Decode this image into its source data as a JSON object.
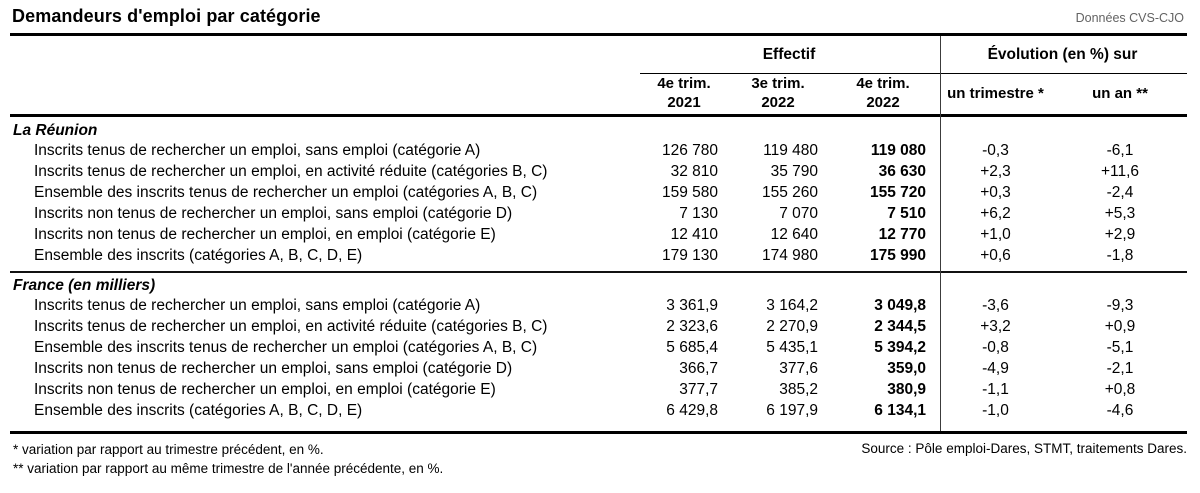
{
  "header": {
    "title": "Demandeurs d'emploi par catégorie",
    "data_note": "Données CVS-CJO"
  },
  "table": {
    "group_headers": {
      "effectif": "Effectif",
      "evolution": "Évolution (en %) sur"
    },
    "columns": {
      "c1": {
        "line1": "4e trim.",
        "line2": "2021"
      },
      "c2": {
        "line1": "3e trim.",
        "line2": "2022"
      },
      "c3": {
        "line1": "4e trim.",
        "line2": "2022"
      },
      "c4": {
        "label": "un trimestre *"
      },
      "c5": {
        "label": "un an **"
      }
    },
    "sections": [
      {
        "name": "La Réunion",
        "rows": [
          {
            "label": "Inscrits tenus de rechercher un emploi, sans emploi (catégorie A)",
            "values": [
              "126 780",
              "119 480",
              "119 080",
              "-0,3",
              "-6,1"
            ]
          },
          {
            "label": "Inscrits tenus de rechercher un emploi, en activité réduite (catégories B, C)",
            "values": [
              "32 810",
              "35 790",
              "36 630",
              "+2,3",
              "+11,6"
            ]
          },
          {
            "label": "Ensemble des inscrits tenus de rechercher un emploi (catégories A, B, C)",
            "values": [
              "159 580",
              "155 260",
              "155 720",
              "+0,3",
              "-2,4"
            ]
          },
          {
            "label": "Inscrits non tenus de rechercher un emploi, sans emploi (catégorie D)",
            "values": [
              "7 130",
              "7 070",
              "7 510",
              "+6,2",
              "+5,3"
            ]
          },
          {
            "label": "Inscrits non tenus de rechercher un emploi, en emploi (catégorie E)",
            "values": [
              "12 410",
              "12 640",
              "12 770",
              "+1,0",
              "+2,9"
            ]
          },
          {
            "label": "Ensemble des inscrits (catégories A, B, C, D, E)",
            "values": [
              "179 130",
              "174 980",
              "175 990",
              "+0,6",
              "-1,8"
            ]
          }
        ]
      },
      {
        "name": "France (en milliers)",
        "rows": [
          {
            "label": "Inscrits tenus de rechercher un emploi, sans emploi (catégorie A)",
            "values": [
              "3 361,9",
              "3 164,2",
              "3 049,8",
              "-3,6",
              "-9,3"
            ]
          },
          {
            "label": "Inscrits tenus de rechercher un emploi, en activité réduite (catégories B, C)",
            "values": [
              "2 323,6",
              "2 270,9",
              "2 344,5",
              "+3,2",
              "+0,9"
            ]
          },
          {
            "label": "Ensemble des inscrits tenus de rechercher un emploi (catégories A, B, C)",
            "values": [
              "5 685,4",
              "5 435,1",
              "5 394,2",
              "-0,8",
              "-5,1"
            ]
          },
          {
            "label": "Inscrits non tenus de rechercher un emploi, sans emploi (catégorie D)",
            "values": [
              "366,7",
              "377,6",
              "359,0",
              "-4,9",
              "-2,1"
            ]
          },
          {
            "label": "Inscrits non tenus de rechercher un emploi, en emploi (catégorie E)",
            "values": [
              "377,7",
              "385,2",
              "380,9",
              "-1,1",
              "+0,8"
            ]
          },
          {
            "label": "Ensemble des inscrits (catégories A, B, C, D, E)",
            "values": [
              "6 429,8",
              "6 197,9",
              "6 134,1",
              "-1,0",
              "-4,6"
            ]
          }
        ]
      }
    ]
  },
  "footer": {
    "footnote_quarter": "* variation par rapport au trimestre précédent, en %.",
    "footnote_year": "** variation par rapport au même trimestre de l'année précédente, en %.",
    "source": "Source : Pôle emploi-Dares, STMT, traitements Dares."
  },
  "colors": {
    "text": "#000000",
    "muted_note": "#636363",
    "rule": "#000000"
  }
}
